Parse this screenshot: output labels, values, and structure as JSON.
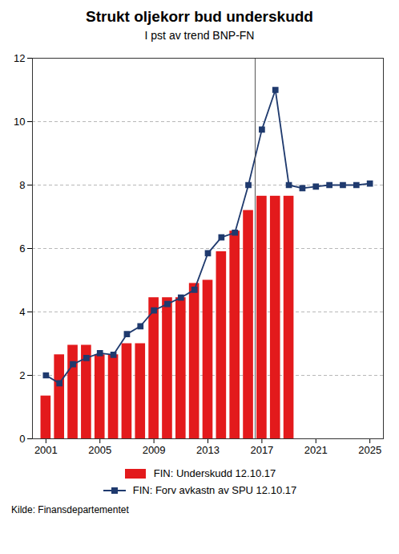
{
  "chart_data": {
    "type": "bar",
    "title": "Strukt oljekorr bud underskudd",
    "subtitle": "I pst av trend BNP-FN",
    "source": "Kilde: Finansdepartementet",
    "series": [
      {
        "name": "FIN: Underskudd 12.10.17",
        "type": "bar",
        "color": "#e31a1c",
        "x": [
          2001,
          2002,
          2003,
          2004,
          2005,
          2006,
          2007,
          2008,
          2009,
          2010,
          2011,
          2012,
          2013,
          2014,
          2015,
          2016,
          2017,
          2018,
          2019
        ],
        "values": [
          1.35,
          2.65,
          2.95,
          2.95,
          2.65,
          2.65,
          3.0,
          3.0,
          4.45,
          4.45,
          4.45,
          4.9,
          5.0,
          5.9,
          6.55,
          7.2,
          7.65,
          7.65,
          7.65
        ]
      },
      {
        "name": "FIN: Forv avkastn av SPU 12.10.17",
        "type": "line",
        "color": "#1f3a6e",
        "marker": "square",
        "x": [
          2001,
          2002,
          2003,
          2004,
          2005,
          2006,
          2007,
          2008,
          2009,
          2010,
          2011,
          2012,
          2013,
          2014,
          2015,
          2016,
          2017,
          2018,
          2019,
          2020,
          2021,
          2022,
          2023,
          2024,
          2025
        ],
        "values": [
          2.0,
          1.75,
          2.35,
          2.55,
          2.7,
          2.65,
          3.3,
          3.55,
          4.05,
          4.25,
          4.45,
          4.7,
          5.85,
          6.35,
          6.5,
          8.0,
          9.75,
          11.0,
          8.0,
          7.9,
          7.95,
          8.0,
          8.0,
          8.0,
          8.05
        ]
      }
    ],
    "vline": 2016.5,
    "xlim": [
      2000,
      2026
    ],
    "xticks": [
      2001,
      2005,
      2009,
      2013,
      2017,
      2021,
      2025
    ],
    "ylim": [
      0,
      12
    ],
    "yticks": [
      0,
      2,
      4,
      6,
      8,
      10,
      12
    ],
    "grid": true,
    "legend": "bottom"
  }
}
